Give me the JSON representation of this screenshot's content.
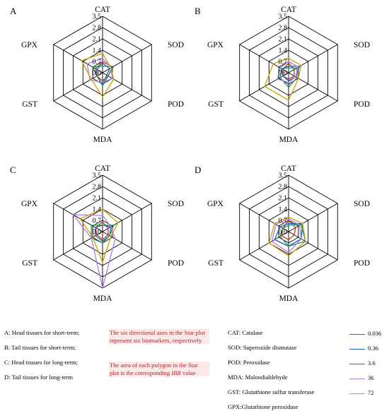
{
  "chart_data": [
    {
      "type": "radar",
      "panel": "A",
      "axes": [
        "CAT",
        "SOD",
        "POD",
        "MDA",
        "GST",
        "GPX"
      ],
      "ticks": [
        0.0,
        0.7,
        1.4,
        2.1,
        2.8,
        3.5
      ],
      "range": [
        0,
        3.5
      ],
      "series": [
        {
          "name": "0.036",
          "color": "#c0392b",
          "values": [
            0.7,
            0.7,
            0.4,
            0.5,
            0.4,
            0.5
          ]
        },
        {
          "name": "0.36",
          "color": "#1f5fbf",
          "values": [
            0.6,
            0.5,
            0.3,
            0.7,
            0.4,
            0.4
          ]
        },
        {
          "name": "3.6",
          "color": "#1e8f5a",
          "values": [
            0.4,
            0.8,
            0.4,
            0.8,
            0.4,
            0.7
          ]
        },
        {
          "name": "36",
          "color": "#b07be0",
          "values": [
            0.9,
            0.6,
            0.7,
            0.6,
            0.9,
            1.1
          ]
        },
        {
          "name": "72",
          "color": "#c8a200",
          "values": [
            1.2,
            0.6,
            0.8,
            1.5,
            0.8,
            1.5
          ]
        }
      ]
    },
    {
      "type": "radar",
      "panel": "B",
      "axes": [
        "CAT",
        "SOD",
        "POD",
        "MDA",
        "GST",
        "GPX"
      ],
      "ticks": [
        0.0,
        0.7,
        1.4,
        2.1,
        2.8,
        3.5
      ],
      "range": [
        0,
        3.5
      ],
      "series": [
        {
          "name": "0.036",
          "color": "#c0392b",
          "values": [
            0.6,
            0.4,
            0.4,
            0.4,
            0.4,
            0.4
          ]
        },
        {
          "name": "0.36",
          "color": "#1f5fbf",
          "values": [
            0.4,
            0.8,
            0.5,
            0.5,
            0.4,
            0.5
          ]
        },
        {
          "name": "3.6",
          "color": "#1e8f5a",
          "values": [
            0.3,
            0.6,
            0.6,
            0.9,
            0.6,
            0.5
          ]
        },
        {
          "name": "36",
          "color": "#b07be0",
          "values": [
            0.7,
            0.7,
            0.5,
            0.6,
            0.8,
            0.6
          ]
        },
        {
          "name": "72",
          "color": "#c8a200",
          "values": [
            0.9,
            0.9,
            0.7,
            1.7,
            1.7,
            1.1
          ]
        }
      ]
    },
    {
      "type": "radar",
      "panel": "C",
      "axes": [
        "CAT",
        "SOD",
        "POD",
        "MDA",
        "GST",
        "GPX"
      ],
      "ticks": [
        0.0,
        0.7,
        1.4,
        2.1,
        2.8,
        3.5
      ],
      "range": [
        0,
        3.5
      ],
      "series": [
        {
          "name": "0.036",
          "color": "#c0392b",
          "values": [
            0.6,
            0.4,
            0.4,
            0.5,
            0.4,
            0.5
          ]
        },
        {
          "name": "0.36",
          "color": "#1f5fbf",
          "values": [
            0.4,
            0.6,
            0.5,
            0.6,
            0.5,
            0.5
          ]
        },
        {
          "name": "3.6",
          "color": "#1e8f5a",
          "values": [
            0.4,
            0.8,
            0.5,
            0.7,
            0.8,
            0.8
          ]
        },
        {
          "name": "36",
          "color": "#b07be0",
          "values": [
            1.0,
            0.6,
            0.9,
            3.5,
            0.8,
            2.1
          ]
        },
        {
          "name": "72",
          "color": "#c8a200",
          "values": [
            1.4,
            1.1,
            0.6,
            1.9,
            0.7,
            1.6
          ]
        }
      ]
    },
    {
      "type": "radar",
      "panel": "D",
      "axes": [
        "CAT",
        "SOD",
        "POD",
        "MDA",
        "GST",
        "GPX"
      ],
      "ticks": [
        0.0,
        0.7,
        1.4,
        2.1,
        2.8,
        3.5
      ],
      "range": [
        0,
        3.5
      ],
      "series": [
        {
          "name": "0.036",
          "color": "#c0392b",
          "values": [
            0.7,
            0.5,
            0.4,
            0.5,
            0.5,
            0.4
          ]
        },
        {
          "name": "0.36",
          "color": "#1f5fbf",
          "values": [
            0.5,
            1.0,
            0.9,
            0.9,
            1.0,
            0.6
          ]
        },
        {
          "name": "3.6",
          "color": "#1e8f5a",
          "values": [
            0.4,
            0.9,
            1.2,
            0.9,
            0.6,
            0.4
          ]
        },
        {
          "name": "36",
          "color": "#b07be0",
          "values": [
            0.8,
            0.8,
            0.9,
            1.3,
            1.2,
            0.9
          ]
        },
        {
          "name": "72",
          "color": "#c8a200",
          "values": [
            0.9,
            1.0,
            1.2,
            1.5,
            1.4,
            1.0
          ]
        }
      ]
    }
  ],
  "legend_left": [
    "A: Head tissues for short-term;",
    "B: Tail tissues for short-term;",
    "C: Head tissues for long-term;",
    "D: Tail tissues for long-term"
  ],
  "notes": {
    "note1": "The six directional axes in the Star plot represent six biomarkers, respectively",
    "note2_prefix": "The area of each polygon in the Star plot is the corresponding ",
    "note2_italic": "IBR",
    "note2_suffix": " value"
  },
  "abbreviations": [
    "CAT: Catalase",
    "SOD: Superoxide dismutase",
    "POD: Peroxidase",
    "MDA: Malondialdehyde",
    "GST: Glutathione sulfur transferase",
    "GPX:Glutathione peroxidase"
  ],
  "series_legend": [
    {
      "label": "0.036",
      "color": "#c0392b"
    },
    {
      "label": "0.36",
      "color": "#1f5fbf"
    },
    {
      "label": "3.6",
      "color": "#1e8f5a"
    },
    {
      "label": "36",
      "color": "#b07be0"
    },
    {
      "label": "72",
      "color": "#c8a200"
    }
  ]
}
